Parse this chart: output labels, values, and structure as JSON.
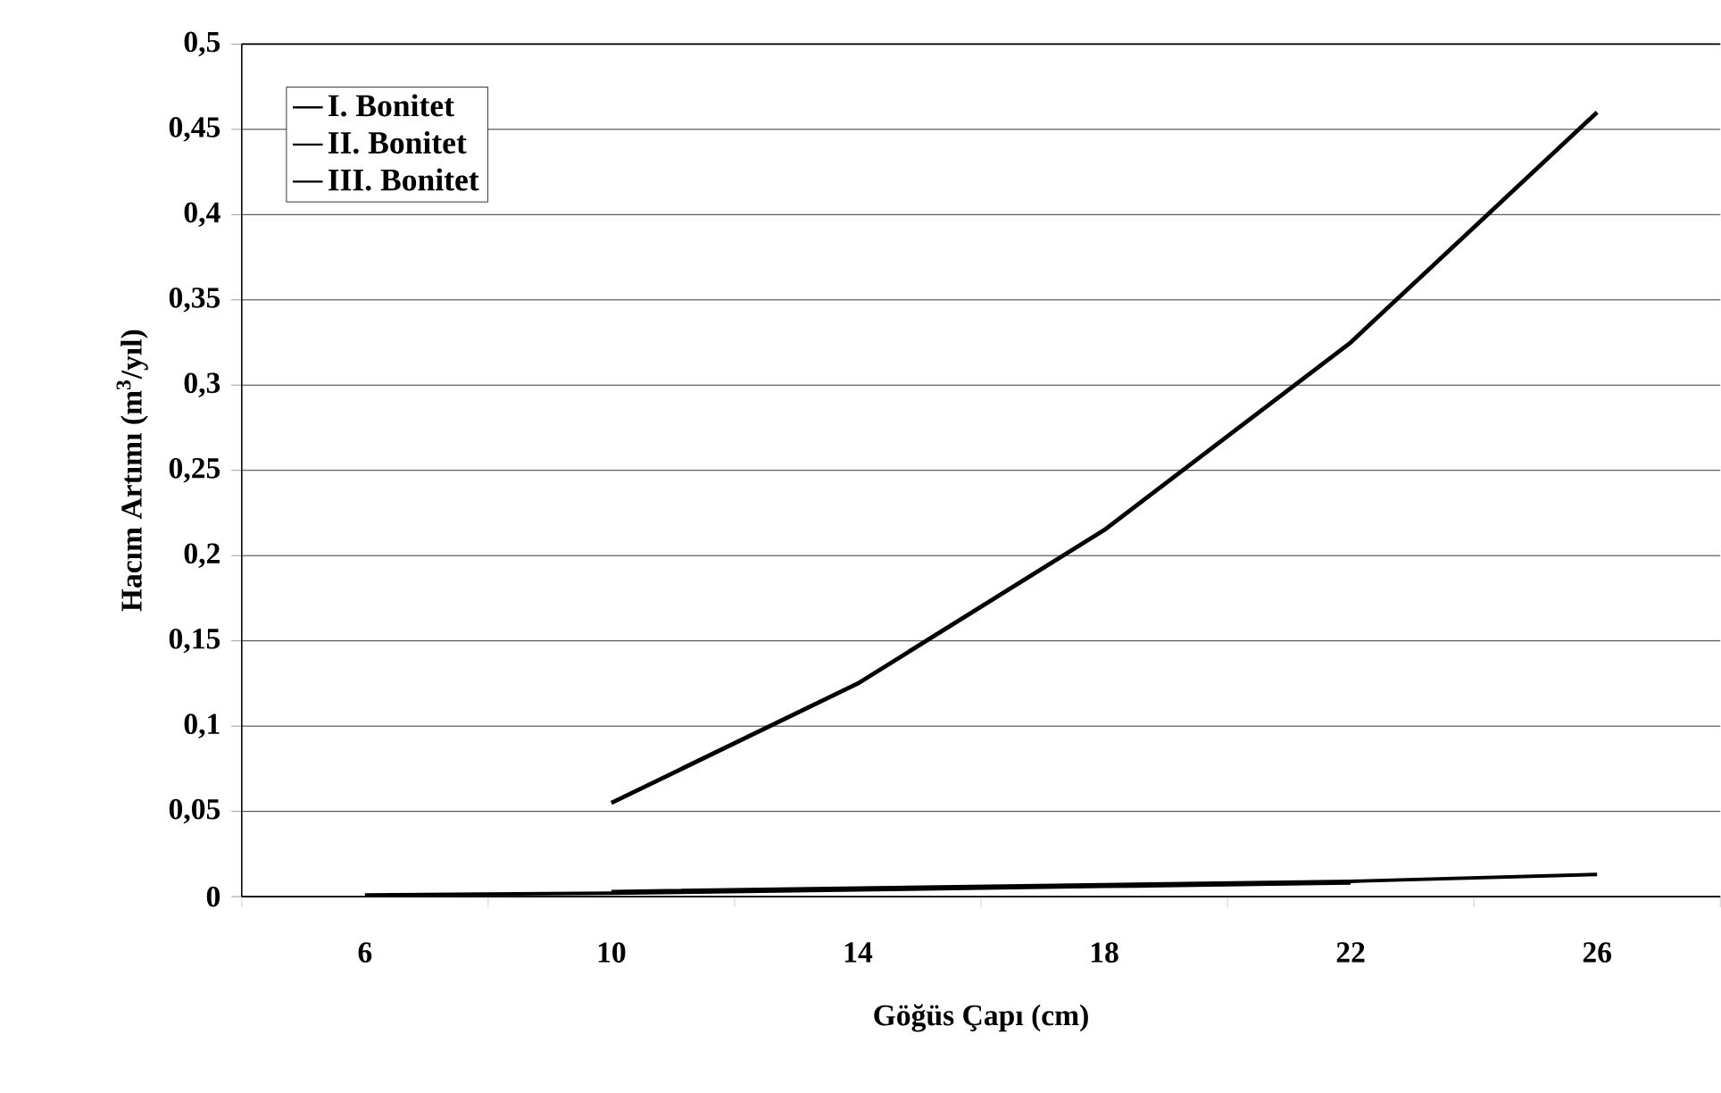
{
  "chart_data": {
    "type": "line",
    "xlabel": "Göğüs Çapı (cm)",
    "ylabel": "Hacım Artımı (m$^{3}$/yıl)",
    "categories": [
      "6",
      "10",
      "14",
      "18",
      "22",
      "26"
    ],
    "series": [
      {
        "name": "I. Bonitet",
        "color": "#000000",
        "values": [
          null,
          0.055,
          0.125,
          0.215,
          0.325,
          0.46
        ]
      },
      {
        "name": "II. Bonitet",
        "color": "#000000",
        "values": [
          null,
          0.003,
          0.005,
          0.007,
          0.009,
          0.013
        ]
      },
      {
        "name": "III. Bonitet",
        "color": "#000000",
        "values": [
          0.001,
          0.002,
          0.004,
          0.006,
          0.008,
          null
        ]
      }
    ],
    "ylim": [
      0,
      0.5
    ],
    "yticks": [
      0,
      {
        "value": 0.05,
        "label": "0,05"
      },
      {
        "value": 0.1,
        "label": "0,1"
      },
      {
        "value": 0.15,
        "label": "0,15"
      },
      {
        "value": 0.2,
        "label": "0,2"
      },
      {
        "value": 0.25,
        "label": "0,25"
      },
      {
        "value": 0.3,
        "label": "0,3"
      },
      {
        "value": 0.35,
        "label": "0,35"
      },
      {
        "value": 0.4,
        "label": "0,4"
      },
      {
        "value": 0.45,
        "label": "0,45"
      },
      {
        "value": 0.5,
        "label": "0,5"
      }
    ],
    "grid": "y",
    "legend": "top left",
    "marker": "none",
    "line_style": "solid"
  }
}
